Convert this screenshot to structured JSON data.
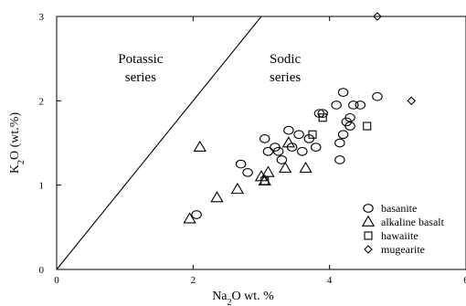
{
  "chart_data": {
    "type": "scatter",
    "xlabel": {
      "base": "Na",
      "sub": "2",
      "rest": "O wt. %"
    },
    "ylabel": {
      "base": "K",
      "sub": "2",
      "rest": "O (wt.%)"
    },
    "xlim": [
      0,
      6
    ],
    "ylim": [
      0,
      3
    ],
    "x_ticks": [
      "0",
      "2",
      "4",
      "6"
    ],
    "y_ticks": [
      "0",
      "1",
      "2",
      "3"
    ],
    "grid": false,
    "legend_position": "bottom-right",
    "divider_line": {
      "from": [
        0,
        0
      ],
      "to": [
        3,
        3
      ]
    },
    "region_labels": {
      "potassic": [
        "Potassic",
        "series"
      ],
      "sodic": [
        "Sodic",
        "series"
      ]
    },
    "series": [
      {
        "name": "basanite",
        "marker": "circle",
        "points": [
          [
            2.05,
            0.65
          ],
          [
            2.7,
            1.25
          ],
          [
            2.8,
            1.15
          ],
          [
            3.05,
            1.55
          ],
          [
            3.1,
            1.4
          ],
          [
            3.2,
            1.45
          ],
          [
            3.25,
            1.4
          ],
          [
            3.3,
            1.3
          ],
          [
            3.4,
            1.65
          ],
          [
            3.45,
            1.45
          ],
          [
            3.55,
            1.6
          ],
          [
            3.6,
            1.4
          ],
          [
            3.7,
            1.55
          ],
          [
            3.8,
            1.45
          ],
          [
            3.85,
            1.85
          ],
          [
            3.9,
            1.85
          ],
          [
            4.1,
            1.95
          ],
          [
            4.15,
            1.5
          ],
          [
            4.15,
            1.3
          ],
          [
            4.2,
            2.1
          ],
          [
            4.2,
            1.6
          ],
          [
            4.25,
            1.75
          ],
          [
            4.3,
            1.7
          ],
          [
            4.3,
            1.8
          ],
          [
            4.35,
            1.95
          ],
          [
            4.45,
            1.95
          ],
          [
            4.7,
            2.05
          ]
        ]
      },
      {
        "name": "alkaline basalt",
        "marker": "triangle",
        "points": [
          [
            1.95,
            0.6
          ],
          [
            2.1,
            1.45
          ],
          [
            2.35,
            0.85
          ],
          [
            2.65,
            0.95
          ],
          [
            3.0,
            1.1
          ],
          [
            3.05,
            1.05
          ],
          [
            3.1,
            1.15
          ],
          [
            3.35,
            1.2
          ],
          [
            3.65,
            1.2
          ],
          [
            3.4,
            1.5
          ]
        ]
      },
      {
        "name": "hawaiite",
        "marker": "square",
        "points": [
          [
            3.05,
            1.05
          ],
          [
            3.9,
            1.8
          ],
          [
            3.75,
            1.6
          ],
          [
            4.55,
            1.7
          ]
        ]
      },
      {
        "name": "mugearite",
        "marker": "diamond",
        "points": [
          [
            4.7,
            3.0
          ],
          [
            5.2,
            2.0
          ]
        ]
      }
    ]
  }
}
